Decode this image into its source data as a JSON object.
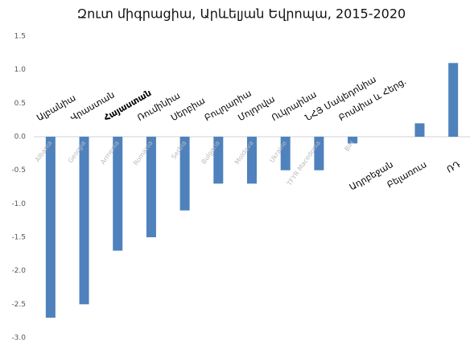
{
  "chart_data": {
    "type": "bar",
    "title": "Զուտ միգրացիա, Արևելյան Եվրոպա, 2015-2020",
    "categories": [
      "Ալբանիա",
      "Վրաստան",
      "Հայաստան",
      "Ռումինիա",
      "Սերբիա",
      "Բուլղարիա",
      "Մոլդովա",
      "Ուկրաինա",
      "ՆՀՅ Մակեդոնիա",
      "Բոսնիա և Հերց.",
      "Ադրբեջան",
      "Բելառուս",
      "ՌԴ"
    ],
    "english_labels": [
      "Albania",
      "Georgia",
      "Armenia",
      "Romania",
      "Serbia",
      "Bulgaria",
      "Moldova",
      "Ukraine",
      "TFYR Macedonia",
      "BiH",
      null,
      null,
      null
    ],
    "values": [
      -2.7,
      -2.5,
      -1.7,
      -1.5,
      -1.1,
      -0.7,
      -0.7,
      -0.5,
      -0.5,
      -0.1,
      0,
      0.2,
      1.1
    ],
    "color": "#4f81bd",
    "highlight_index": 2,
    "ylim": [
      -3,
      1.5
    ],
    "yticks": [
      {
        "value": -3,
        "label": "-3.0"
      },
      -2.5,
      {
        "value": -2,
        "label": "-2.0"
      },
      -1.5,
      {
        "value": -1,
        "label": "-1.0"
      },
      -0.5,
      {
        "value": 0,
        "label": "0.0"
      },
      0.5,
      {
        "value": 1,
        "label": "1.0"
      },
      1.5
    ],
    "grid": false
  }
}
